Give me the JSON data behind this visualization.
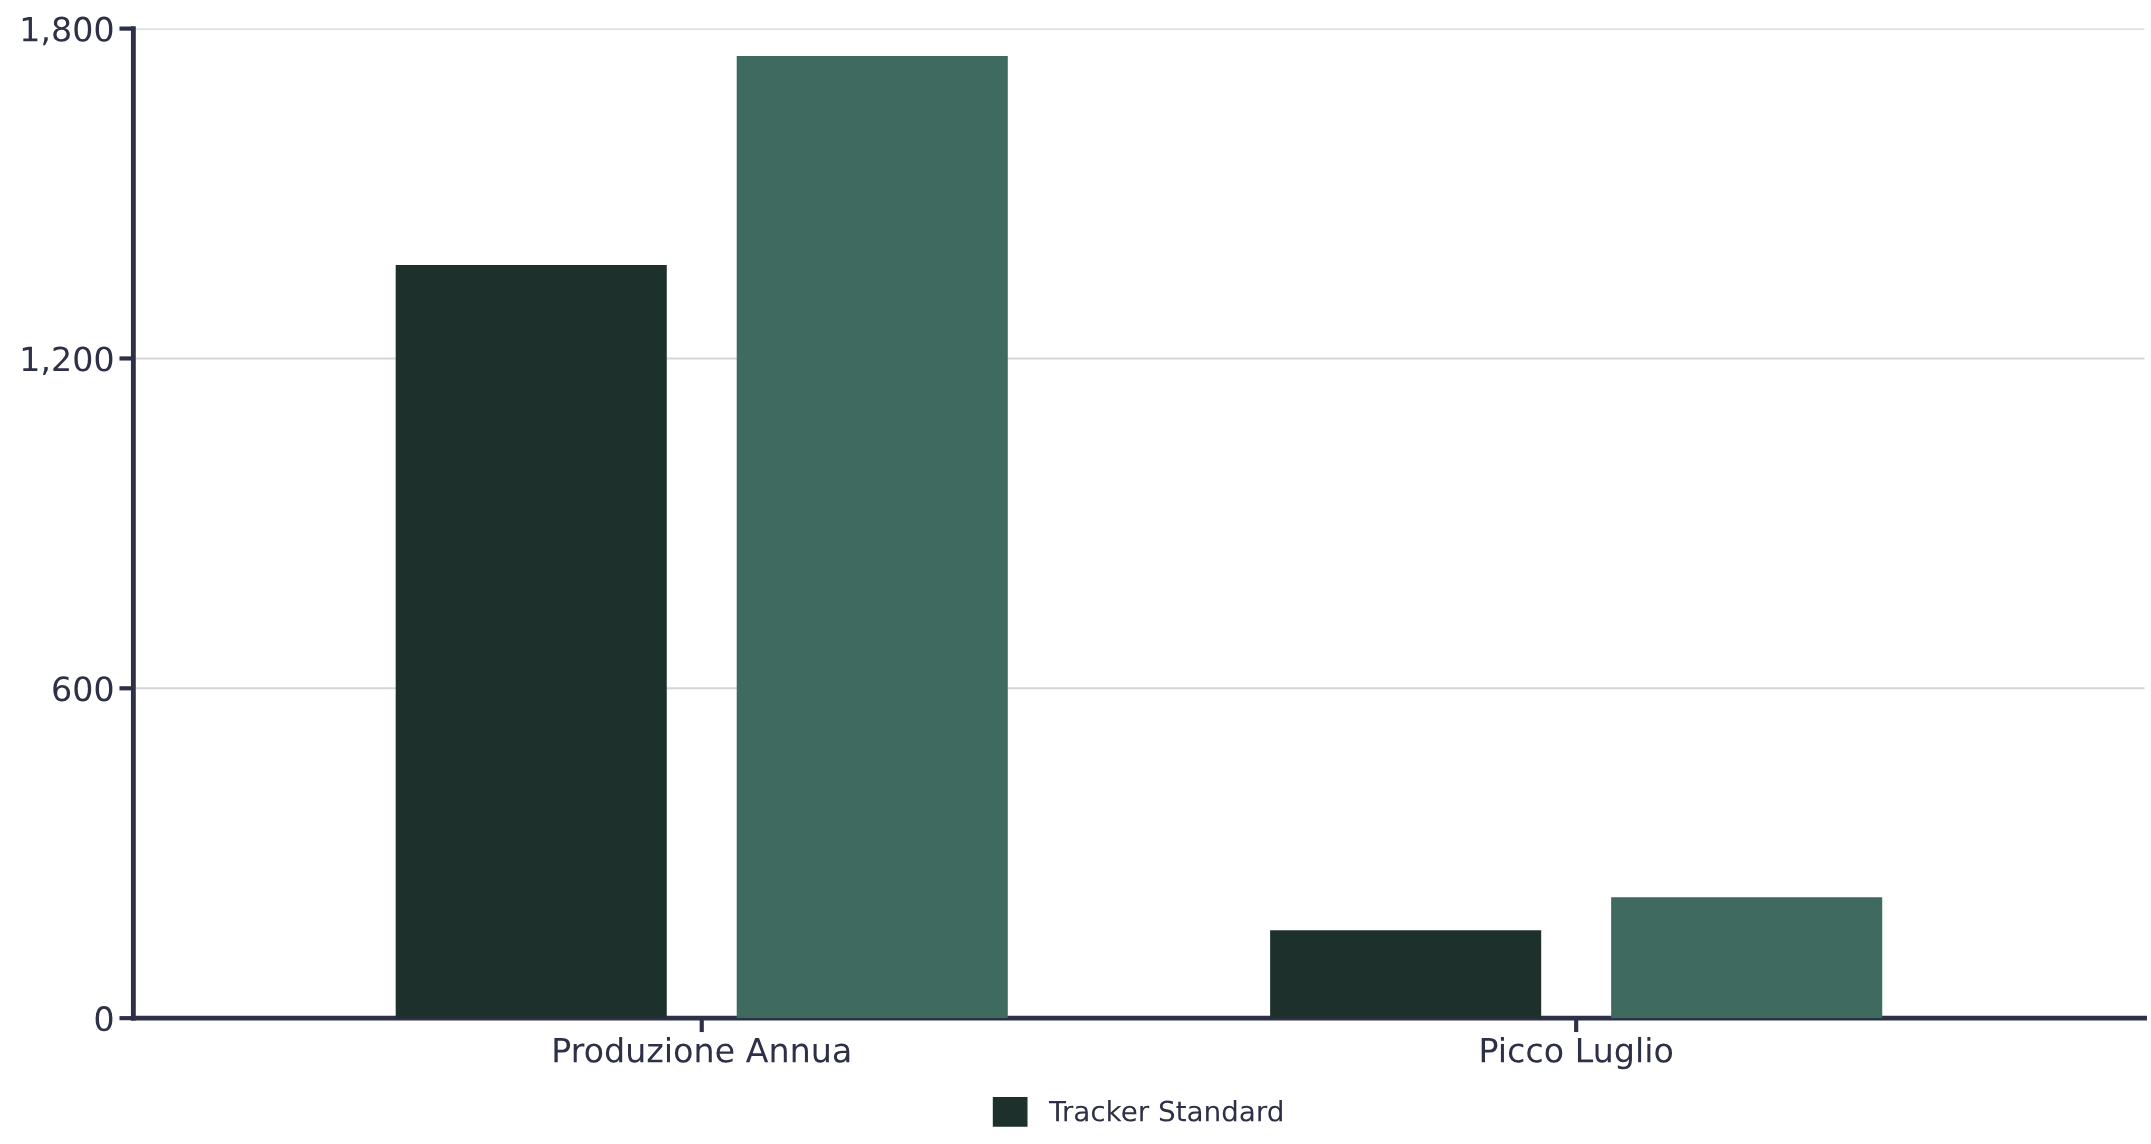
{
  "chart_data": {
    "type": "bar",
    "categories": [
      "Produzione Annua",
      "Picco Luglio"
    ],
    "series": [
      {
        "name": "Tracker Standard",
        "color": "#1e302c",
        "values": [
          1370,
          160
        ]
      },
      {
        "color": "#3f6a5f",
        "values": [
          1750,
          220
        ]
      }
    ],
    "ylim": [
      0,
      1800
    ],
    "yticks": [
      0,
      {
        "value": 600,
        "label": "600"
      },
      {
        "value": 1200,
        "label": "1,200"
      },
      {
        "value": 1800,
        "label": "1,800"
      }
    ],
    "grid": "y",
    "legend": "bottom"
  }
}
